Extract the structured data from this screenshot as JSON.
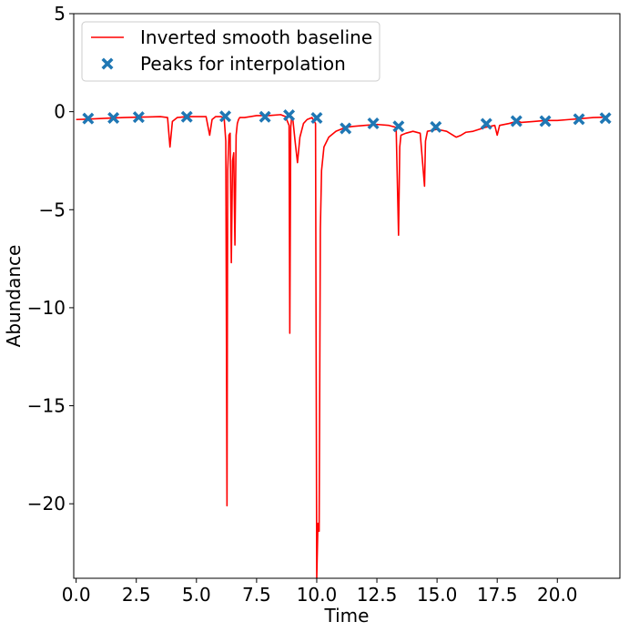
{
  "chart_data": {
    "type": "line",
    "xlabel": "Time",
    "ylabel": "Abundance",
    "xlim": [
      -0.1,
      22.6
    ],
    "ylim": [
      -23.8,
      5
    ],
    "x_ticks": [
      0.0,
      2.5,
      5.0,
      7.5,
      10.0,
      12.5,
      15.0,
      17.5,
      20.0
    ],
    "x_tick_labels": [
      "0.0",
      "2.5",
      "5.0",
      "7.5",
      "10.0",
      "12.5",
      "15.0",
      "17.5",
      "20.0"
    ],
    "y_ticks": [
      5,
      0,
      -5,
      -10,
      -15,
      -20
    ],
    "y_tick_labels": [
      "5",
      "0",
      "−5",
      "−10",
      "−15",
      "−20"
    ],
    "grid": false,
    "legend_position": "upper left",
    "series": [
      {
        "name": "Inverted smooth baseline",
        "kind": "line",
        "color": "#ff0000",
        "x": [
          0.0,
          0.5,
          1.0,
          1.5,
          2.0,
          2.5,
          3.0,
          3.5,
          3.8,
          3.9,
          4.0,
          4.2,
          4.6,
          5.0,
          5.4,
          5.55,
          5.65,
          5.8,
          6.0,
          6.15,
          6.22,
          6.27,
          6.3,
          6.35,
          6.4,
          6.45,
          6.5,
          6.55,
          6.6,
          6.65,
          6.7,
          6.75,
          6.8,
          7.0,
          7.5,
          8.0,
          8.5,
          8.7,
          8.85,
          8.88,
          8.92,
          8.96,
          9.0,
          9.1,
          9.2,
          9.3,
          9.45,
          9.6,
          9.8,
          9.95,
          10.0,
          10.05,
          10.1,
          10.15,
          10.2,
          10.3,
          10.5,
          10.8,
          11.2,
          11.5,
          12.0,
          12.5,
          13.0,
          13.3,
          13.4,
          13.45,
          13.5,
          13.7,
          14.0,
          14.3,
          14.48,
          14.52,
          14.6,
          15.0,
          15.4,
          15.8,
          16.0,
          16.2,
          16.5,
          17.0,
          17.4,
          17.5,
          17.6,
          18.0,
          18.3,
          18.4,
          18.5,
          19.0,
          19.5,
          20.0,
          20.5,
          21.0,
          21.5,
          22.0
        ],
        "y": [
          -0.4,
          -0.38,
          -0.35,
          -0.32,
          -0.3,
          -0.28,
          -0.27,
          -0.25,
          -0.3,
          -1.8,
          -0.5,
          -0.3,
          -0.25,
          -0.25,
          -0.25,
          -1.2,
          -0.4,
          -0.25,
          -0.25,
          -0.3,
          -1.5,
          -20.1,
          -3.0,
          -1.2,
          -1.1,
          -7.7,
          -2.5,
          -2.1,
          -6.8,
          -1.2,
          -0.6,
          -0.4,
          -0.3,
          -0.3,
          -0.2,
          -0.2,
          -0.15,
          -0.25,
          -0.7,
          -11.3,
          -0.8,
          -0.25,
          -0.3,
          -1.5,
          -2.6,
          -1.3,
          -0.6,
          -0.4,
          -0.3,
          -0.6,
          -23.8,
          -21.0,
          -21.4,
          -6.0,
          -3.0,
          -1.8,
          -1.3,
          -1.0,
          -0.8,
          -0.75,
          -0.7,
          -0.65,
          -0.7,
          -0.8,
          -6.3,
          -1.8,
          -1.2,
          -1.1,
          -1.0,
          -1.1,
          -3.8,
          -1.5,
          -1.0,
          -0.9,
          -1.0,
          -1.3,
          -1.2,
          -1.05,
          -1.0,
          -0.8,
          -0.7,
          -1.2,
          -0.7,
          -0.6,
          -0.5,
          -0.5,
          -0.55,
          -0.5,
          -0.45,
          -0.45,
          -0.4,
          -0.35,
          -0.3,
          -0.28
        ]
      },
      {
        "name": "Peaks for interpolation",
        "kind": "scatter",
        "color": "#1f77b4",
        "marker": "X",
        "x": [
          0.5,
          1.55,
          2.6,
          4.6,
          6.2,
          7.85,
          8.85,
          10.0,
          11.2,
          12.35,
          13.4,
          14.95,
          17.05,
          18.3,
          19.5,
          20.9,
          22.0
        ],
        "y": [
          -0.35,
          -0.32,
          -0.28,
          -0.26,
          -0.24,
          -0.26,
          -0.18,
          -0.32,
          -0.85,
          -0.6,
          -0.75,
          -0.78,
          -0.62,
          -0.48,
          -0.48,
          -0.38,
          -0.33
        ]
      }
    ]
  }
}
